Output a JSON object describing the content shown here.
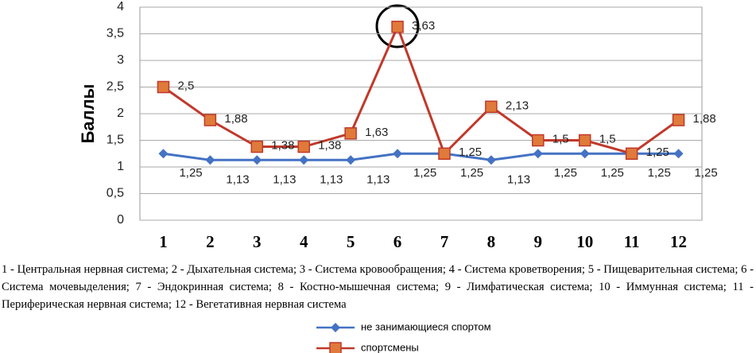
{
  "chart_data": {
    "type": "line",
    "y_label": "Баллы",
    "categories": [
      "1",
      "2",
      "3",
      "4",
      "5",
      "6",
      "7",
      "8",
      "9",
      "10",
      "11",
      "12"
    ],
    "series": [
      {
        "name": "не занимающиеся спортом",
        "color": "#4472c4",
        "marker": "diamond",
        "values": [
          1.25,
          1.13,
          1.13,
          1.13,
          1.13,
          1.25,
          1.25,
          1.13,
          1.25,
          1.25,
          1.25,
          1.25
        ],
        "value_labels": [
          "1,25",
          "1,13",
          "1,13",
          "1,13",
          "1,13",
          "1,25",
          "1,25",
          "1,13",
          "1,25",
          "1,25",
          "1,25",
          "1,25"
        ]
      },
      {
        "name": "спортсмены",
        "color": "#c0392b",
        "marker": "square",
        "values": [
          2.5,
          1.88,
          1.38,
          1.38,
          1.63,
          3.63,
          1.25,
          2.13,
          1.5,
          1.5,
          1.25,
          1.88
        ],
        "value_labels": [
          "2,5",
          "1,88",
          "1,38",
          "1,38",
          "1,63",
          "3,63",
          "1,25",
          "2,13",
          "1,5",
          "1,5",
          "1,25",
          "1,88"
        ]
      }
    ],
    "ylim": [
      0,
      4
    ],
    "yticks": [
      0,
      {
        "value": 0.5,
        "label": "0,5"
      },
      1,
      {
        "value": 1.5,
        "label": "1,5"
      },
      2,
      {
        "value": 2.5,
        "label": "2,5"
      },
      3,
      {
        "value": 3.5,
        "label": "3,5"
      },
      4
    ],
    "grid": true,
    "caption": "1 - Центральная нервная система; 2 - Дыхательная система; 3 - Система кровообращения; 4 - Система кроветворения; 5 - Пищеварительная система; 6 - Система мочевыделения; 7 - Эндокринная система; 8 - Костно-мышечная система; 9 - Лимфатическая система; 10 - Иммунная система; 11 - Периферическая нервная система; 12 - Вегетативная нервная система"
  }
}
